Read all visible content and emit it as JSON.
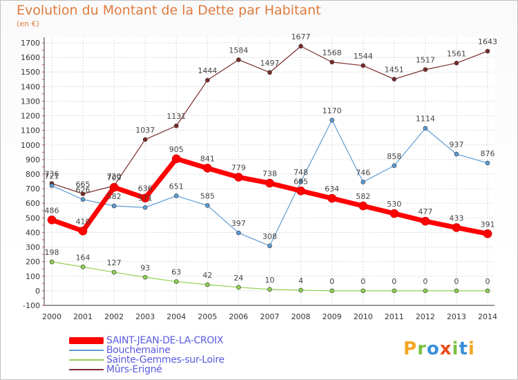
{
  "title": "Evolution du Montant de la Dette par Habitant",
  "subtitle": "(en €)",
  "logo_text": "Proxiti",
  "chart_data": {
    "type": "line",
    "x": [
      2000,
      2001,
      2002,
      2003,
      2004,
      2005,
      2006,
      2007,
      2008,
      2009,
      2010,
      2011,
      2012,
      2013,
      2014
    ],
    "ylim": [
      -100,
      1700
    ],
    "yticks": [
      -100,
      0,
      100,
      200,
      300,
      400,
      500,
      600,
      700,
      800,
      900,
      1000,
      1100,
      1200,
      1300,
      1400,
      1500,
      1600,
      1700
    ],
    "grid": true,
    "legend_position": "bottom-left",
    "series": [
      {
        "name": "SAINT-JEAN-DE-LA-CROIX",
        "color": "#ff0000",
        "values": [
          486,
          410,
          709,
          636,
          905,
          841,
          779,
          738,
          685,
          634,
          582,
          530,
          477,
          433,
          391
        ]
      },
      {
        "name": "Bouchemaine",
        "color": "#5b9bd5",
        "values": [
          721,
          626,
          582,
          571,
          651,
          585,
          397,
          308,
          748,
          1170,
          746,
          858,
          1114,
          937,
          876
        ]
      },
      {
        "name": "Sainte-Gemmes-sur-Loire",
        "color": "#8fd14f",
        "values": [
          198,
          164,
          127,
          93,
          63,
          42,
          24,
          10,
          4,
          0,
          0,
          0,
          0,
          0,
          0
        ]
      },
      {
        "name": "Mûrs-Erigné",
        "color": "#7a2a2a",
        "values": [
          736,
          665,
          720,
          1037,
          1131,
          1444,
          1584,
          1497,
          1677,
          1568,
          1544,
          1451,
          1517,
          1561,
          1643
        ]
      }
    ]
  }
}
